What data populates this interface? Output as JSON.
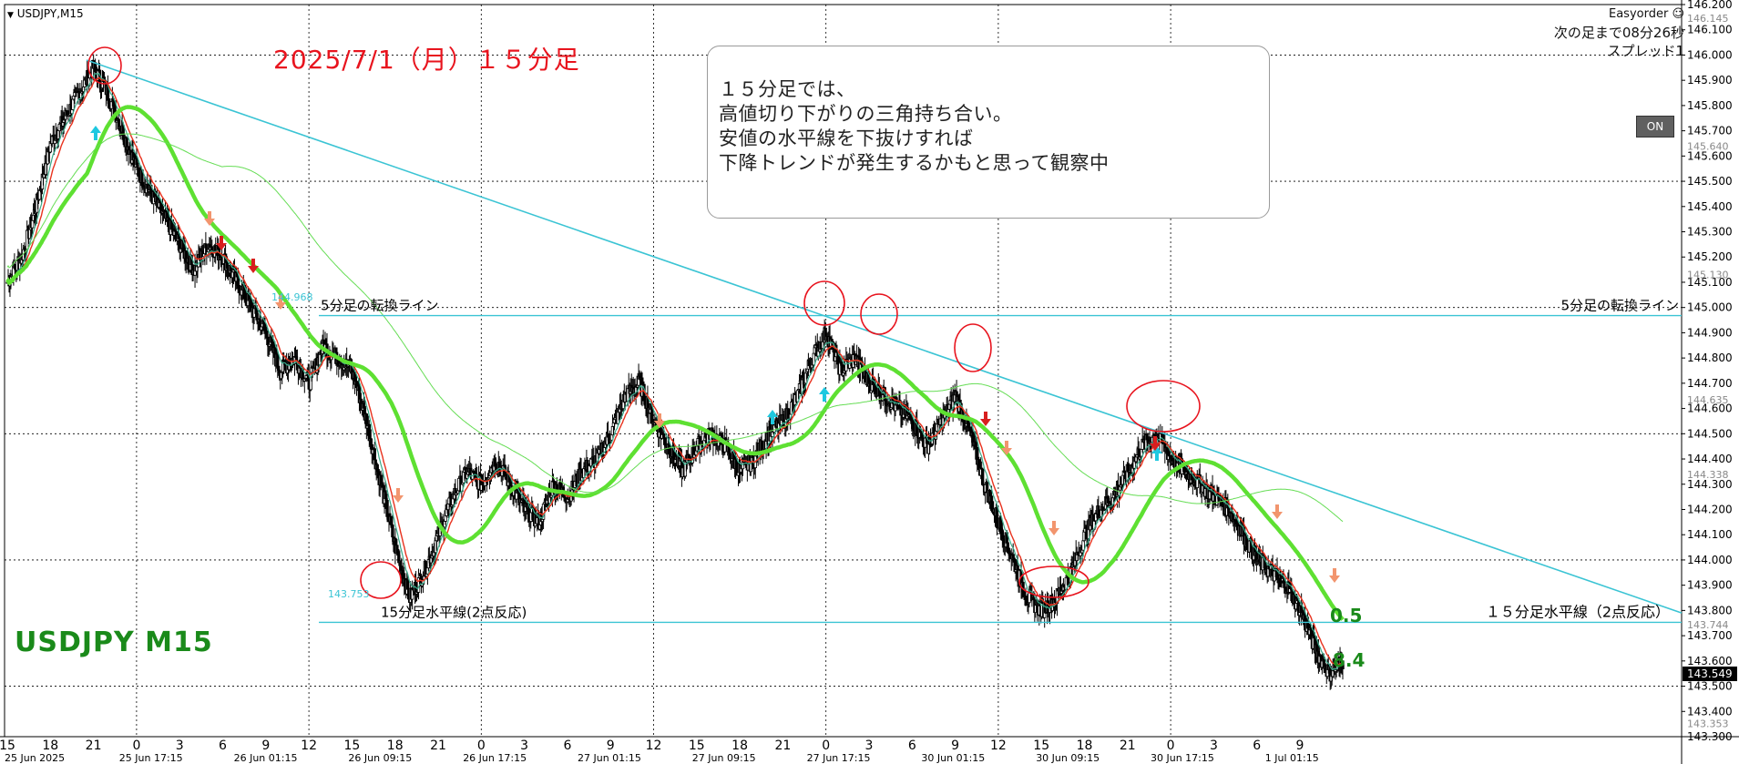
{
  "window": {
    "symbol_label": "USDJPY,M15"
  },
  "annotations": {
    "title_date": "2025/7/1（月）１５分足",
    "watermark": "USDJPY M15",
    "note_lines": [
      "１５分足では、",
      "高値切り下がりの三角持ち合い。",
      "安値の水平線を下抜けすれば",
      "下降トレンドが発生するかもと思って観察中"
    ],
    "line_5min_left": "5分足の転換ライン",
    "line_5min_right": "5分足の転換ライン",
    "line_15min_left": "15分足水平線(2点反応)",
    "line_15min_right": "１５分足水平線（2点反応）",
    "small_price_low": "143.753",
    "small_price_top": "144.968",
    "label_05": "0.5",
    "label_84": "8.4"
  },
  "ea_panel": {
    "title": "Easyorder",
    "bar_timer": "次の足まで08分26秒",
    "spread": "スプレッド1",
    "on_button": "ON"
  },
  "colors": {
    "background": "#ffffff",
    "candle": "#000000",
    "ema_red": "#e8321e",
    "ema_teal": "#3aaa8a",
    "ma_green_bold": "#5ee032",
    "ma_green_thin": "#66dd55",
    "trend_cyan": "#3bc4d4",
    "circle_red": "#e8141e",
    "arrow_cyan": "#1ec8e0",
    "arrow_down_red": "#d81e1e",
    "arrow_down_salmon": "#f2956e",
    "grid": "#000000",
    "current_price_bg": "#000000"
  },
  "chart_data": {
    "type": "candlestick",
    "symbol": "USDJPY",
    "timeframe": "M15",
    "ylim": [
      143.3,
      146.2
    ],
    "price_axis_labels": [
      "146.200",
      "146.100",
      "146.000",
      "145.900",
      "145.800",
      "145.700",
      "145.600",
      "145.500",
      "145.400",
      "145.300",
      "145.200",
      "145.100",
      "145.000",
      "144.900",
      "144.800",
      "144.700",
      "144.600",
      "144.500",
      "144.400",
      "144.300",
      "144.200",
      "144.100",
      "144.000",
      "143.900",
      "143.800",
      "143.700",
      "143.600",
      "143.500",
      "143.400",
      "143.300"
    ],
    "price_axis_extra": [
      "146.145",
      "145.640",
      "145.130",
      "144.635",
      "144.338",
      "143.744",
      "143.353"
    ],
    "current_price": "143.549",
    "time_axis_hours": [
      "15",
      "18",
      "21",
      "0",
      "3",
      "6",
      "9",
      "12",
      "15",
      "18",
      "21",
      "0",
      "3",
      "6",
      "9",
      "12",
      "15",
      "18",
      "21",
      "0",
      "3",
      "6",
      "9",
      "12",
      "15",
      "18",
      "21",
      "0",
      "3",
      "6",
      "9"
    ],
    "time_axis_dates": [
      "25 Jun 2025",
      "25 Jun 17:15",
      "26 Jun 01:15",
      "26 Jun 09:15",
      "26 Jun 17:15",
      "27 Jun 01:15",
      "27 Jun 09:15",
      "27 Jun 17:15",
      "30 Jun 01:15",
      "30 Jun 09:15",
      "30 Jun 17:15",
      "1 Jul 01:15"
    ],
    "horizontal_lines": [
      144.968,
      143.753
    ],
    "close_path": [
      145.1,
      145.2,
      145.4,
      145.65,
      145.75,
      145.85,
      145.95,
      145.85,
      145.7,
      145.55,
      145.45,
      145.35,
      145.25,
      145.15,
      145.25,
      145.2,
      145.1,
      145.0,
      144.9,
      144.75,
      144.8,
      144.7,
      144.85,
      144.8,
      144.75,
      144.55,
      144.3,
      144.05,
      143.85,
      143.95,
      144.1,
      144.25,
      144.35,
      144.3,
      144.4,
      144.3,
      144.2,
      144.15,
      144.3,
      144.25,
      144.35,
      144.4,
      144.5,
      144.65,
      144.7,
      144.55,
      144.45,
      144.35,
      144.45,
      144.5,
      144.45,
      144.35,
      144.4,
      144.5,
      144.55,
      144.65,
      144.8,
      144.9,
      144.75,
      144.8,
      144.7,
      144.65,
      144.6,
      144.55,
      144.45,
      144.55,
      144.65,
      144.5,
      144.3,
      144.15,
      144.0,
      143.85,
      143.8,
      143.85,
      143.95,
      144.1,
      144.2,
      144.25,
      144.35,
      144.45,
      144.5,
      144.4,
      144.35,
      144.3,
      144.25,
      144.2,
      144.1,
      144.0,
      143.95,
      143.9,
      143.8,
      143.65,
      143.55,
      143.6
    ]
  }
}
